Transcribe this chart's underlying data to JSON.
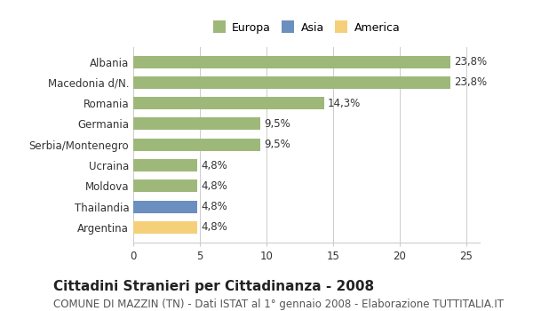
{
  "categories": [
    "Albania",
    "Macedonia d/N.",
    "Romania",
    "Germania",
    "Serbia/Montenegro",
    "Ucraina",
    "Moldova",
    "Thailandia",
    "Argentina"
  ],
  "values": [
    23.8,
    23.8,
    14.3,
    9.5,
    9.5,
    4.8,
    4.8,
    4.8,
    4.8
  ],
  "labels": [
    "23,8%",
    "23,8%",
    "14,3%",
    "9,5%",
    "9,5%",
    "4,8%",
    "4,8%",
    "4,8%",
    "4,8%"
  ],
  "bar_colors": [
    "#9eb87a",
    "#9eb87a",
    "#9eb87a",
    "#9eb87a",
    "#9eb87a",
    "#9eb87a",
    "#9eb87a",
    "#6b8fbf",
    "#f5d07a"
  ],
  "legend_labels": [
    "Europa",
    "Asia",
    "America"
  ],
  "legend_colors": [
    "#9eb87a",
    "#6b8fbf",
    "#f5d07a"
  ],
  "title": "Cittadini Stranieri per Cittadinanza - 2008",
  "subtitle": "COMUNE DI MAZZIN (TN) - Dati ISTAT al 1° gennaio 2008 - Elaborazione TUTTITALIA.IT",
  "xlim": [
    0,
    26
  ],
  "xticks": [
    0,
    5,
    10,
    15,
    20,
    25
  ],
  "background_color": "#ffffff",
  "grid_color": "#cccccc",
  "bar_height": 0.6,
  "title_fontsize": 11,
  "subtitle_fontsize": 8.5,
  "tick_fontsize": 8.5,
  "label_fontsize": 8.5,
  "legend_fontsize": 9
}
